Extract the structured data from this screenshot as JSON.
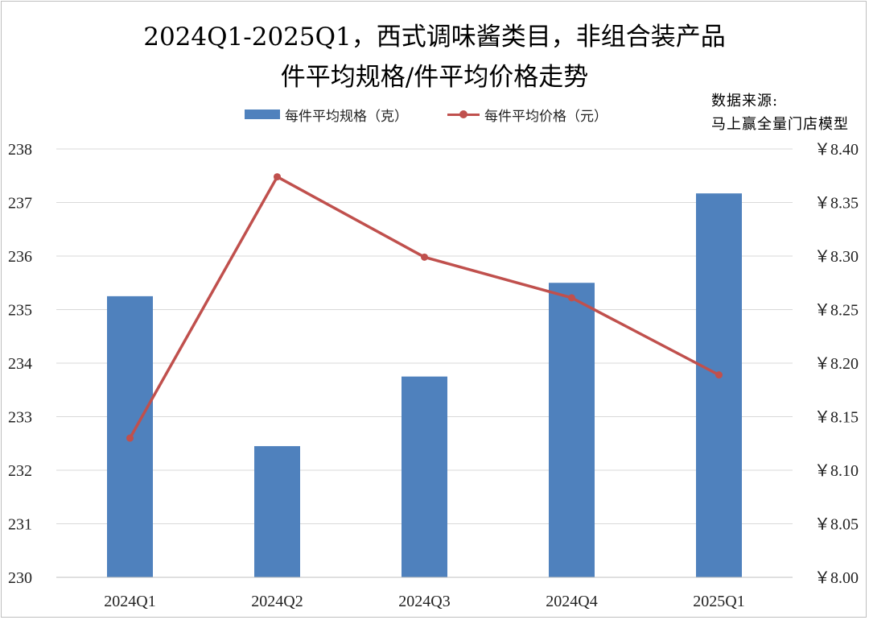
{
  "chart_data": {
    "type": "bar",
    "title_line1": "2024Q1-2025Q1，西式调味酱类目，非组合装产品",
    "title_line2": "件平均规格/件平均价格走势",
    "source_line1": "数据来源:",
    "source_line2": "马上赢全量门店模型",
    "categories": [
      "2024Q1",
      "2024Q2",
      "2024Q3",
      "2024Q4",
      "2025Q1"
    ],
    "series": [
      {
        "name": "每件平均规格（克）",
        "kind": "bar",
        "axis": "left",
        "color": "#4f81bd",
        "values": [
          235.25,
          232.45,
          233.75,
          235.5,
          237.17
        ]
      },
      {
        "name": "每件平均价格（元）",
        "kind": "line",
        "axis": "right",
        "color": "#c0504d",
        "values": [
          8.13,
          8.374,
          8.299,
          8.261,
          8.189
        ]
      }
    ],
    "left_axis": {
      "ylim": [
        230,
        238
      ],
      "ticks": [
        "230",
        "231",
        "232",
        "233",
        "234",
        "235",
        "236",
        "237",
        "238"
      ]
    },
    "right_axis": {
      "ylim": [
        8.0,
        8.4
      ],
      "ticks": [
        "￥8.00",
        "￥8.05",
        "￥8.10",
        "￥8.15",
        "￥8.20",
        "￥8.25",
        "￥8.30",
        "￥8.35",
        "￥8.40"
      ]
    },
    "grid": true,
    "legend_position": "top"
  }
}
